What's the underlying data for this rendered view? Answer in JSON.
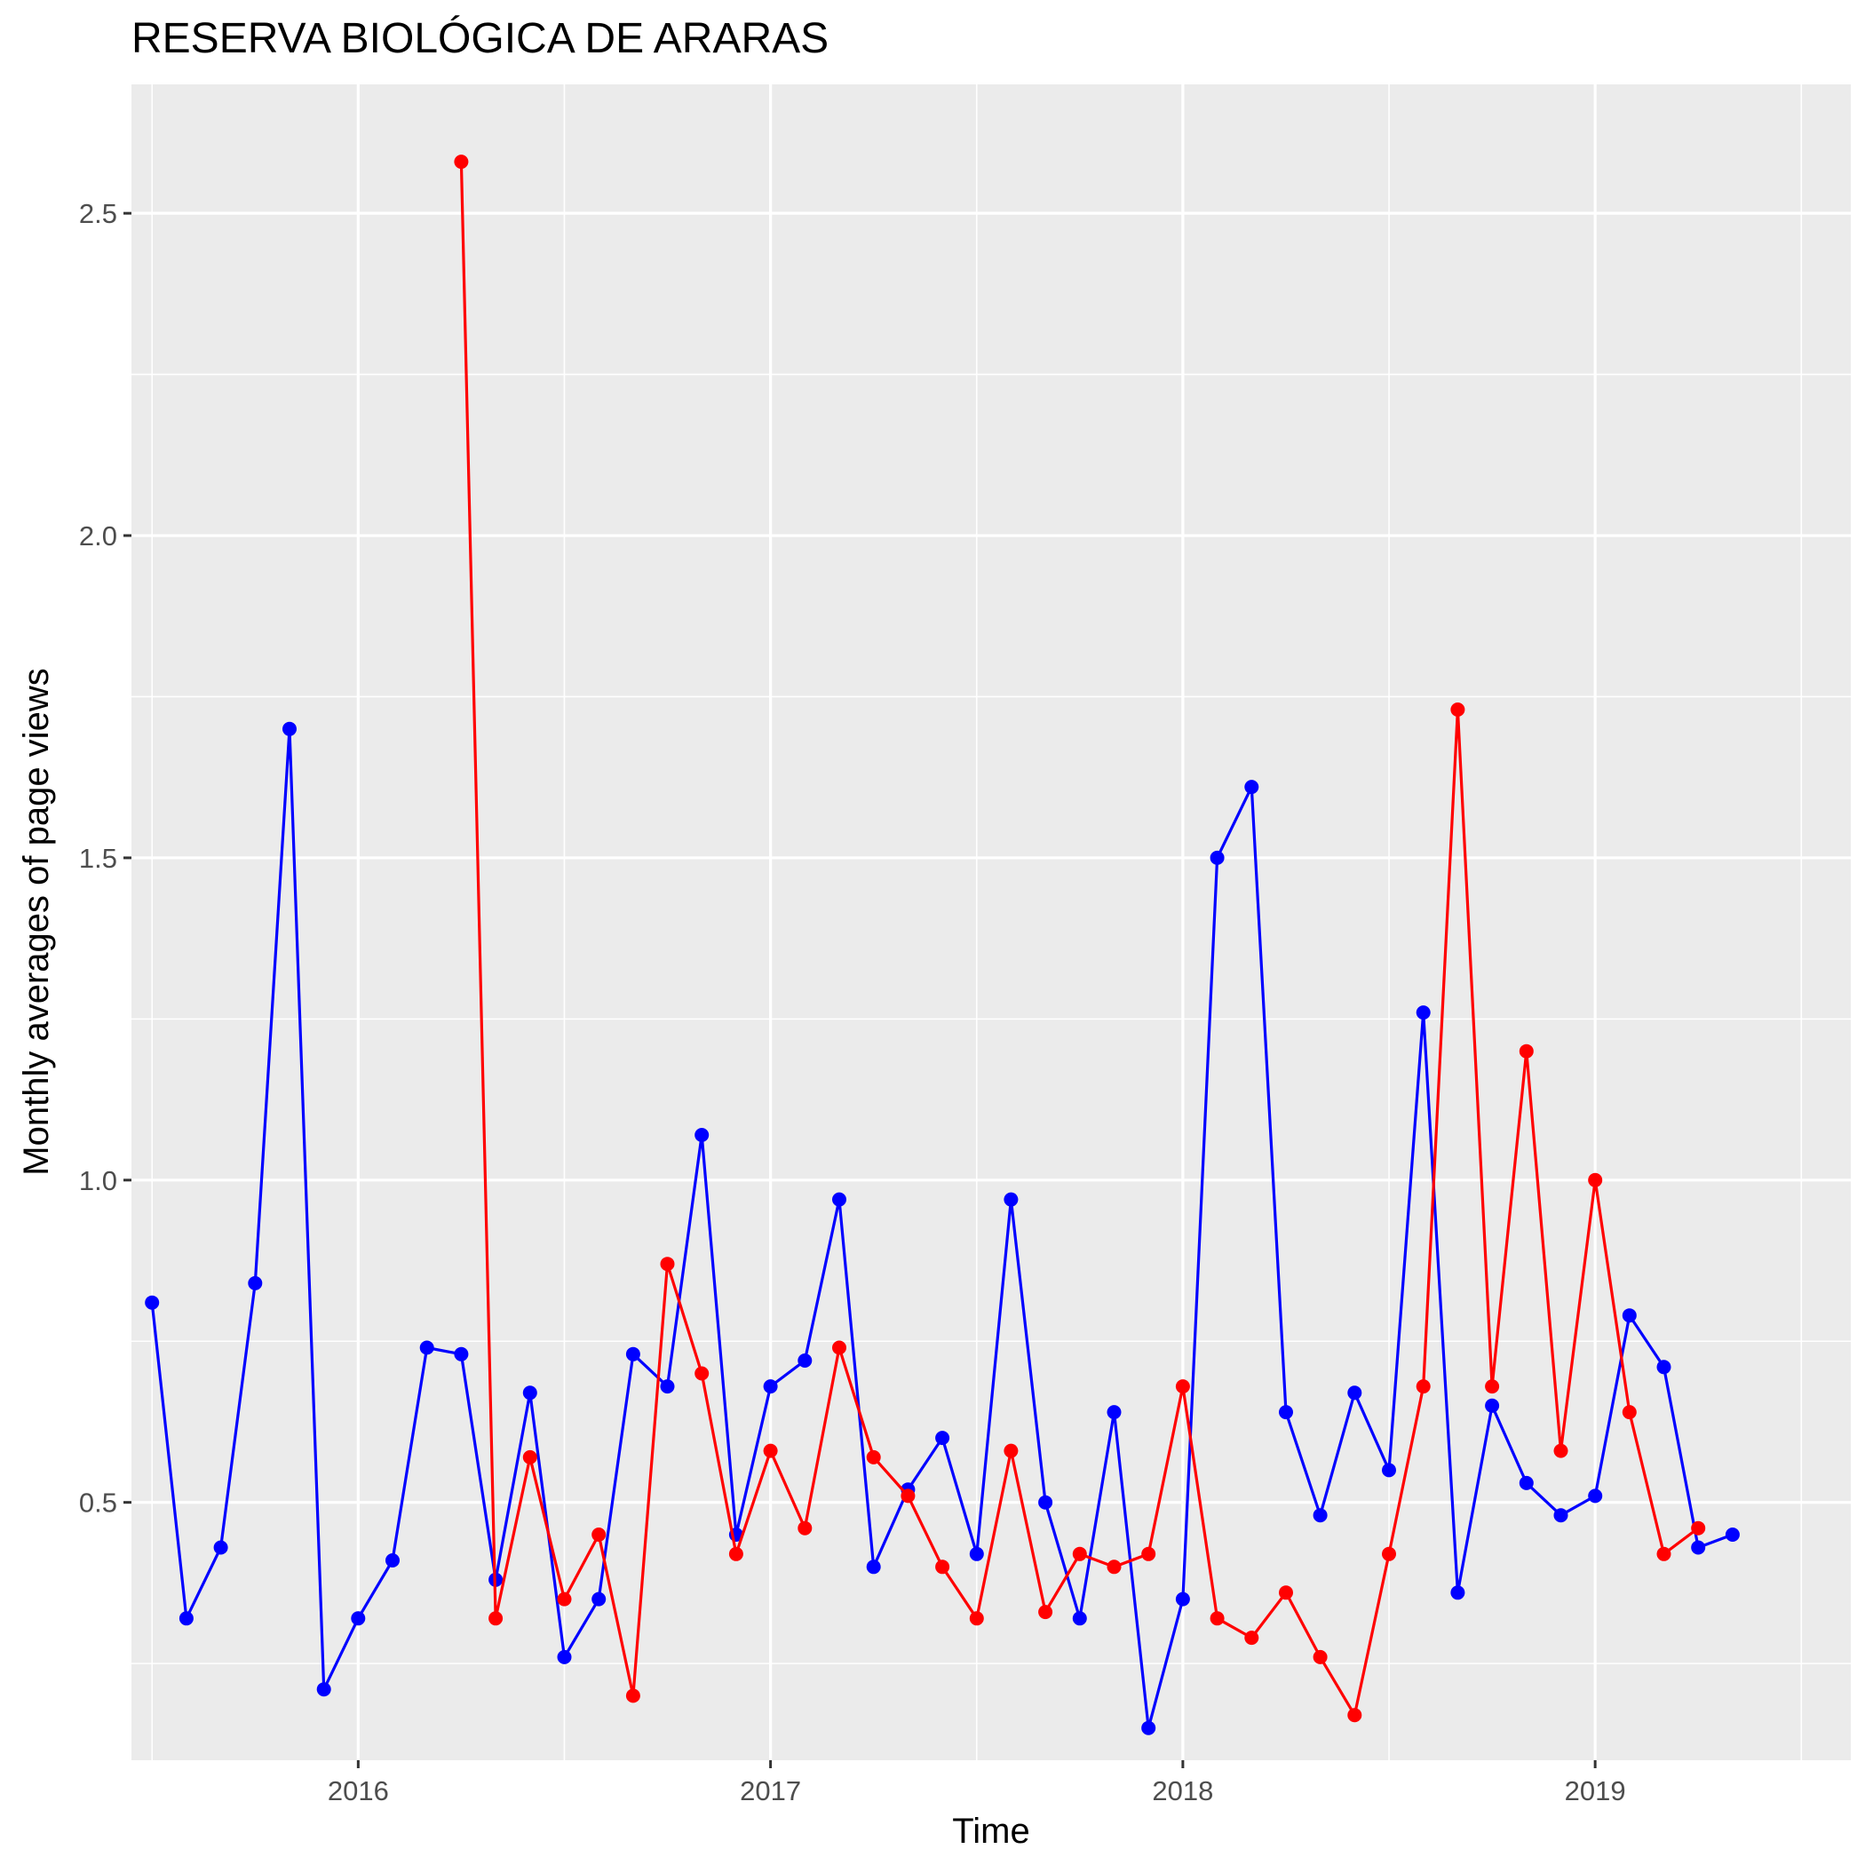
{
  "chart_data": {
    "type": "line",
    "title": "RESERVA BIOLÓGICA DE ARARAS",
    "xlabel": "Time",
    "ylabel": "Monthly averages of page views",
    "x_ticks": [
      2016,
      2017,
      2018,
      2019
    ],
    "y_ticks": [
      0.5,
      1.0,
      1.5,
      2.0,
      2.5
    ],
    "y_tick_labels": [
      "0.5",
      "1.0",
      "1.5",
      "2.0",
      "2.5"
    ],
    "xlim": [
      2015.45,
      2019.62
    ],
    "ylim": [
      0.1,
      2.7
    ],
    "grid": true,
    "legend": "none",
    "series": [
      {
        "color": "#0000ff",
        "points": [
          [
            "2015-07",
            0.81
          ],
          [
            "2015-08",
            0.32
          ],
          [
            "2015-09",
            0.43
          ],
          [
            "2015-10",
            0.84
          ],
          [
            "2015-11",
            1.7
          ],
          [
            "2015-12",
            0.21
          ],
          [
            "2016-01",
            0.32
          ],
          [
            "2016-02",
            0.41
          ],
          [
            "2016-03",
            0.74
          ],
          [
            "2016-04",
            0.73
          ],
          [
            "2016-05",
            0.38
          ],
          [
            "2016-06",
            0.67
          ],
          [
            "2016-07",
            0.26
          ],
          [
            "2016-08",
            0.35
          ],
          [
            "2016-09",
            0.73
          ],
          [
            "2016-10",
            0.68
          ],
          [
            "2016-11",
            1.07
          ],
          [
            "2016-12",
            0.45
          ],
          [
            "2017-01",
            0.68
          ],
          [
            "2017-02",
            0.72
          ],
          [
            "2017-03",
            0.97
          ],
          [
            "2017-04",
            0.4
          ],
          [
            "2017-05",
            0.52
          ],
          [
            "2017-06",
            0.6
          ],
          [
            "2017-07",
            0.42
          ],
          [
            "2017-08",
            0.97
          ],
          [
            "2017-09",
            0.5
          ],
          [
            "2017-10",
            0.32
          ],
          [
            "2017-11",
            0.64
          ],
          [
            "2017-12",
            0.15
          ],
          [
            "2018-01",
            0.35
          ],
          [
            "2018-02",
            1.5
          ],
          [
            "2018-03",
            1.61
          ],
          [
            "2018-04",
            0.64
          ],
          [
            "2018-05",
            0.48
          ],
          [
            "2018-06",
            0.67
          ],
          [
            "2018-07",
            0.55
          ],
          [
            "2018-08",
            1.26
          ],
          [
            "2018-09",
            0.36
          ],
          [
            "2018-10",
            0.65
          ],
          [
            "2018-11",
            0.53
          ],
          [
            "2018-12",
            0.48
          ],
          [
            "2019-01",
            0.51
          ],
          [
            "2019-02",
            0.79
          ],
          [
            "2019-03",
            0.71
          ],
          [
            "2019-04",
            0.43
          ],
          [
            "2019-05",
            0.45
          ]
        ]
      },
      {
        "color": "#ff0000",
        "points": [
          [
            "2016-04",
            2.58
          ],
          [
            "2016-05",
            0.32
          ],
          [
            "2016-06",
            0.57
          ],
          [
            "2016-07",
            0.35
          ],
          [
            "2016-08",
            0.45
          ],
          [
            "2016-09",
            0.2
          ],
          [
            "2016-10",
            0.87
          ],
          [
            "2016-11",
            0.7
          ],
          [
            "2016-12",
            0.42
          ],
          [
            "2017-01",
            0.58
          ],
          [
            "2017-02",
            0.46
          ],
          [
            "2017-03",
            0.74
          ],
          [
            "2017-04",
            0.57
          ],
          [
            "2017-05",
            0.51
          ],
          [
            "2017-06",
            0.4
          ],
          [
            "2017-07",
            0.32
          ],
          [
            "2017-08",
            0.58
          ],
          [
            "2017-09",
            0.33
          ],
          [
            "2017-10",
            0.42
          ],
          [
            "2017-11",
            0.4
          ],
          [
            "2017-12",
            0.42
          ],
          [
            "2018-01",
            0.68
          ],
          [
            "2018-02",
            0.32
          ],
          [
            "2018-03",
            0.29
          ],
          [
            "2018-04",
            0.36
          ],
          [
            "2018-05",
            0.26
          ],
          [
            "2018-06",
            0.17
          ],
          [
            "2018-07",
            0.42
          ],
          [
            "2018-08",
            0.68
          ],
          [
            "2018-09",
            1.73
          ],
          [
            "2018-10",
            0.68
          ],
          [
            "2018-11",
            1.2
          ],
          [
            "2018-12",
            0.58
          ],
          [
            "2019-01",
            1.0
          ],
          [
            "2019-02",
            0.64
          ],
          [
            "2019-03",
            0.42
          ],
          [
            "2019-04",
            0.46
          ]
        ]
      }
    ]
  }
}
